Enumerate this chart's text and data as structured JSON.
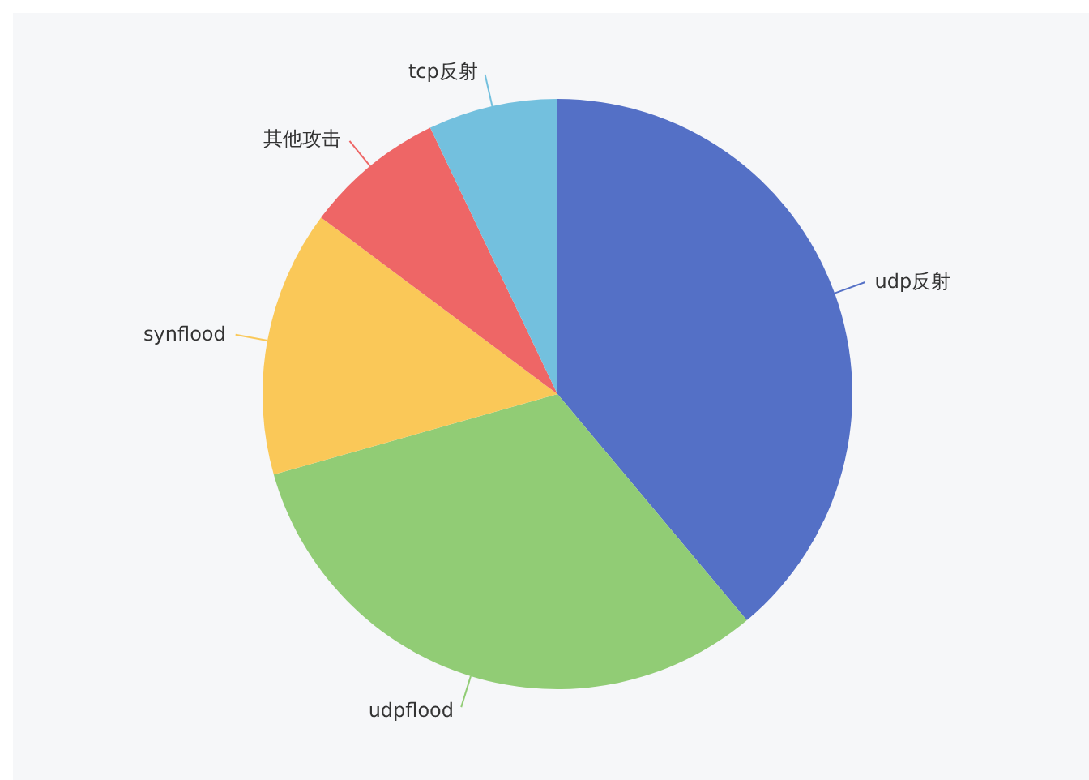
{
  "chart_data": {
    "type": "pie",
    "categories": [
      "udp反射",
      "udpflood",
      "synflood",
      "其他攻击",
      "tcp反射"
    ],
    "values": [
      38.9,
      31.7,
      14.6,
      7.7,
      7.1
    ],
    "colors": [
      "#5470c6",
      "#91cc75",
      "#fac858",
      "#ee6666",
      "#73c0de"
    ],
    "legend": false
  }
}
